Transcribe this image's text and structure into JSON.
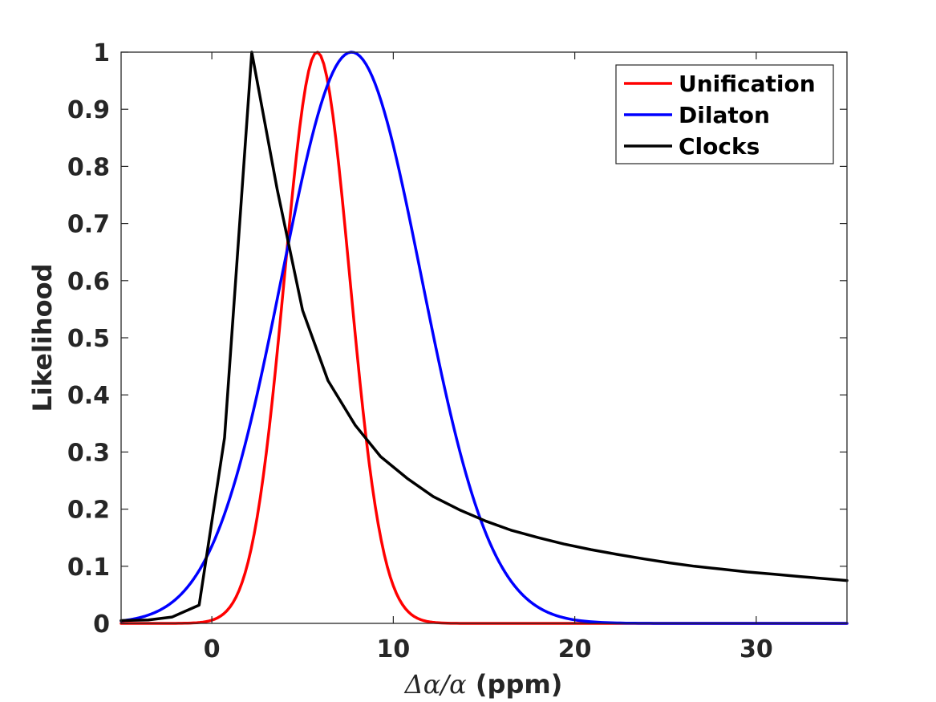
{
  "chart_data": {
    "type": "line",
    "title": "",
    "xlabel": "Δα/α (ppm)",
    "xlabel_parts": {
      "math": "Δα/α",
      "unit": "(ppm)"
    },
    "ylabel": "Likelihood",
    "xlim": [
      -5,
      35
    ],
    "ylim": [
      0,
      1
    ],
    "xticks": [
      0,
      10,
      20,
      30
    ],
    "xtick_labels": [
      "0",
      "10",
      "20",
      "30"
    ],
    "yticks": [
      0,
      0.1,
      0.2,
      0.3,
      0.4,
      0.5,
      0.6,
      0.7,
      0.8,
      0.9,
      1
    ],
    "ytick_labels": [
      "0",
      "0.1",
      "0.2",
      "0.3",
      "0.4",
      "0.5",
      "0.6",
      "0.7",
      "0.8",
      "0.9",
      "1"
    ],
    "grid": false,
    "legend_position": "top-right",
    "series": [
      {
        "name": "Unification",
        "color": "#ff0000",
        "kind": "gaussian",
        "mean": 5.8,
        "sigma": 1.8,
        "peak": 1.0
      },
      {
        "name": "Dilaton",
        "color": "#0000ff",
        "kind": "gaussian",
        "mean": 7.7,
        "sigma": 3.85,
        "peak": 1.0
      },
      {
        "name": "Clocks",
        "color": "#000000",
        "kind": "points",
        "x": [
          -5.0,
          -3.5,
          -2.2,
          -0.7,
          0.7,
          2.2,
          3.6,
          5.0,
          6.4,
          7.9,
          9.3,
          10.8,
          12.2,
          13.7,
          15.1,
          16.5,
          18.0,
          19.4,
          20.9,
          22.3,
          23.8,
          25.2,
          26.6,
          28.1,
          29.5,
          31.0,
          32.4,
          33.9,
          35.0
        ],
        "y": [
          0.005,
          0.006,
          0.011,
          0.032,
          0.325,
          1.0,
          0.76,
          0.548,
          0.425,
          0.347,
          0.292,
          0.253,
          0.222,
          0.198,
          0.179,
          0.163,
          0.15,
          0.139,
          0.129,
          0.121,
          0.113,
          0.106,
          0.1,
          0.095,
          0.09,
          0.086,
          0.082,
          0.078,
          0.075
        ]
      }
    ]
  }
}
